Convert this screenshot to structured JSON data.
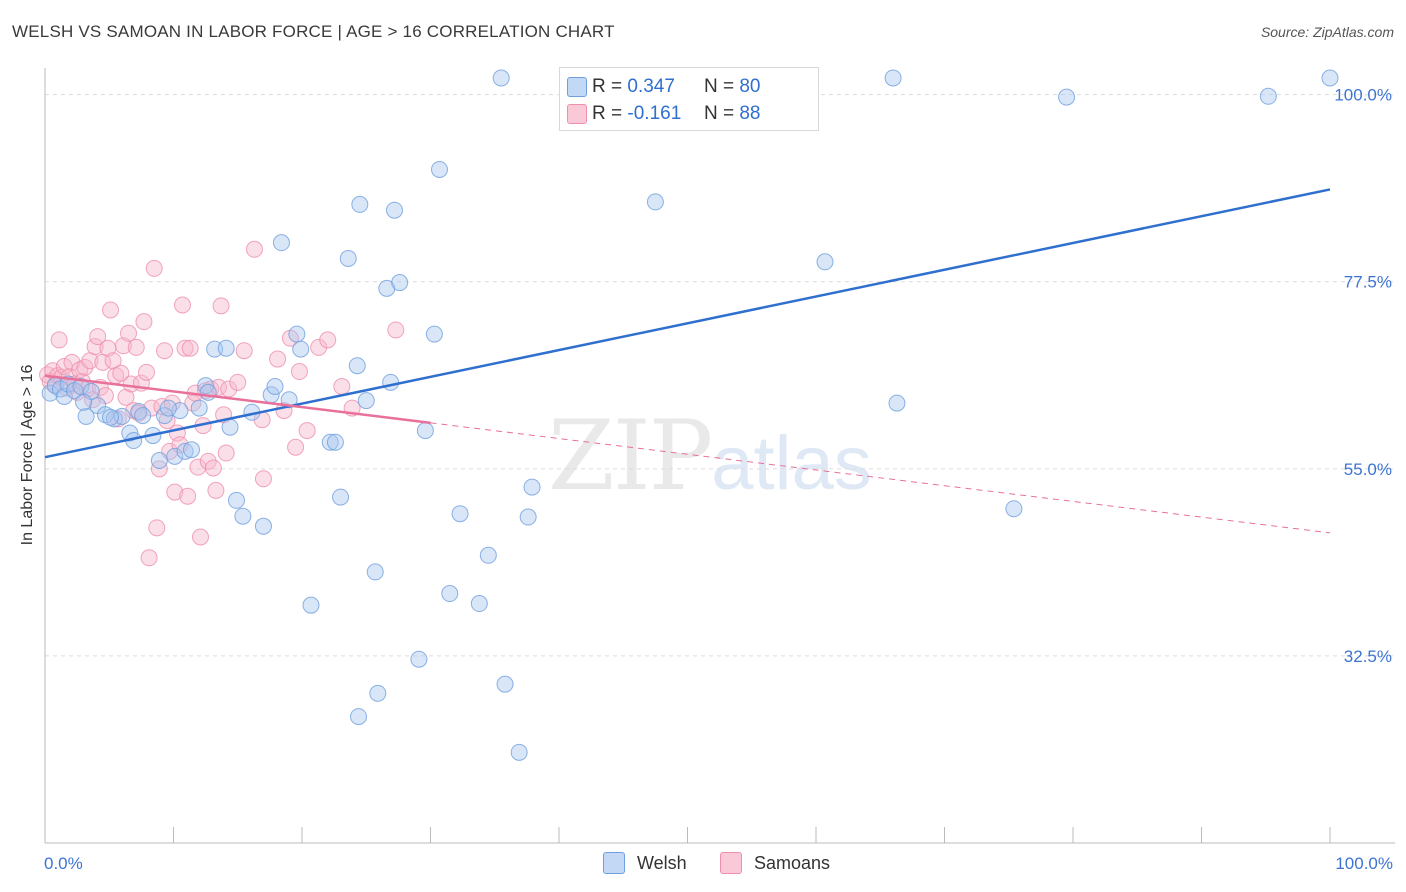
{
  "title": "WELSH VS SAMOAN IN LABOR FORCE | AGE > 16 CORRELATION CHART",
  "source": "Source: ZipAtlas.com",
  "watermark": {
    "zip": "ZIP",
    "atlas": "atlas"
  },
  "legend_top": {
    "welsh": {
      "r_label": "R =",
      "r_value": "0.347",
      "n_label": "N =",
      "n_value": "80"
    },
    "samoans": {
      "r_label": "R =",
      "r_value": "-0.161",
      "n_label": "N =",
      "n_value": "88"
    }
  },
  "legend_bottom": {
    "welsh": "Welsh",
    "samoans": "Samoans"
  },
  "colors": {
    "welsh_fill": "#a9c8f0",
    "welsh_stroke": "#6f9fde",
    "welsh_line": "#2f6fcf",
    "samoan_fill": "#f7b8cc",
    "samoan_stroke": "#ee8fac",
    "samoan_line": "#e8709a",
    "tick_label": "#3d74d2",
    "grid": "#dcdcdc"
  },
  "chart_data": {
    "type": "scatter",
    "title": "WELSH VS SAMOAN IN LABOR FORCE | AGE > 16 CORRELATION CHART",
    "xlabel": "",
    "ylabel": "In Labor Force | Age > 16",
    "xlim": [
      0,
      100
    ],
    "ylim": [
      10,
      102
    ],
    "x_tick_labels": [
      "0.0%",
      "100.0%"
    ],
    "y_ticks": [
      32.5,
      55.0,
      77.5,
      100.0
    ],
    "y_tick_labels": [
      "32.5%",
      "55.0%",
      "77.5%",
      "100.0%"
    ],
    "grid": true,
    "series": [
      {
        "name": "Welsh",
        "r": 0.347,
        "n": 80,
        "trend": {
          "x": [
            0,
            100
          ],
          "y": [
            56.4,
            88.6
          ],
          "dashed_from": null
        },
        "points": [
          [
            0.4,
            64.1
          ],
          [
            0.8,
            65.0
          ],
          [
            1.2,
            64.6
          ],
          [
            1.5,
            63.7
          ],
          [
            1.8,
            65.2
          ],
          [
            2.3,
            64.4
          ],
          [
            2.8,
            64.9
          ],
          [
            3.2,
            61.3
          ],
          [
            3.6,
            64.3
          ],
          [
            4.1,
            62.6
          ],
          [
            4.7,
            61.5
          ],
          [
            5.4,
            61.0
          ],
          [
            6.0,
            61.3
          ],
          [
            6.6,
            59.3
          ],
          [
            6.9,
            58.4
          ],
          [
            7.3,
            61.9
          ],
          [
            7.6,
            61.4
          ],
          [
            8.4,
            59.0
          ],
          [
            8.9,
            56.0
          ],
          [
            9.3,
            61.4
          ],
          [
            10.1,
            56.5
          ],
          [
            10.5,
            62.0
          ],
          [
            10.9,
            57.1
          ],
          [
            11.4,
            57.3
          ],
          [
            12.0,
            62.3
          ],
          [
            12.5,
            65.0
          ],
          [
            12.7,
            64.2
          ],
          [
            13.2,
            69.4
          ],
          [
            14.1,
            69.5
          ],
          [
            14.4,
            60.0
          ],
          [
            14.9,
            51.2
          ],
          [
            15.4,
            49.3
          ],
          [
            16.1,
            61.8
          ],
          [
            17.0,
            48.1
          ],
          [
            17.6,
            63.9
          ],
          [
            17.9,
            64.9
          ],
          [
            18.4,
            82.2
          ],
          [
            19.0,
            63.3
          ],
          [
            19.6,
            71.2
          ],
          [
            19.9,
            69.4
          ],
          [
            20.7,
            38.6
          ],
          [
            22.2,
            58.2
          ],
          [
            22.6,
            58.2
          ],
          [
            23.0,
            51.6
          ],
          [
            23.6,
            80.3
          ],
          [
            24.3,
            67.4
          ],
          [
            24.5,
            86.8
          ],
          [
            25.0,
            63.2
          ],
          [
            25.7,
            42.6
          ],
          [
            26.6,
            76.7
          ],
          [
            26.9,
            65.4
          ],
          [
            27.2,
            86.1
          ],
          [
            27.6,
            77.4
          ],
          [
            29.1,
            32.1
          ],
          [
            29.6,
            59.6
          ],
          [
            30.3,
            71.2
          ],
          [
            30.7,
            91.0
          ],
          [
            31.5,
            40.0
          ],
          [
            32.3,
            49.6
          ],
          [
            33.8,
            38.8
          ],
          [
            34.5,
            44.6
          ],
          [
            35.5,
            102.0
          ],
          [
            35.8,
            29.1
          ],
          [
            36.9,
            20.9
          ],
          [
            37.6,
            49.2
          ],
          [
            37.9,
            52.8
          ],
          [
            41.0,
            102.0
          ],
          [
            47.5,
            87.1
          ],
          [
            60.7,
            79.9
          ],
          [
            66.0,
            102.0
          ],
          [
            66.3,
            62.9
          ],
          [
            75.4,
            50.2
          ],
          [
            79.5,
            99.7
          ],
          [
            95.2,
            99.8
          ],
          [
            100.0,
            102.0
          ],
          [
            24.4,
            25.2
          ],
          [
            25.9,
            28.0
          ],
          [
            3.0,
            63.0
          ],
          [
            9.6,
            62.3
          ],
          [
            5.1,
            61.2
          ]
        ]
      },
      {
        "name": "Samoans",
        "r": -0.161,
        "n": 88,
        "trend": {
          "x": [
            0,
            100
          ],
          "y": [
            66.2,
            47.3
          ],
          "dashed_from": 30
        },
        "points": [
          [
            0.2,
            66.3
          ],
          [
            0.4,
            65.5
          ],
          [
            0.6,
            66.8
          ],
          [
            0.8,
            65.1
          ],
          [
            1.0,
            66.2
          ],
          [
            1.1,
            70.5
          ],
          [
            1.3,
            66.0
          ],
          [
            1.5,
            67.3
          ],
          [
            1.7,
            64.7
          ],
          [
            1.9,
            66.1
          ],
          [
            2.1,
            67.8
          ],
          [
            2.3,
            65.2
          ],
          [
            2.5,
            64.2
          ],
          [
            2.7,
            66.9
          ],
          [
            2.9,
            65.5
          ],
          [
            3.1,
            67.2
          ],
          [
            3.3,
            64.6
          ],
          [
            3.5,
            68.0
          ],
          [
            3.7,
            63.3
          ],
          [
            3.9,
            69.7
          ],
          [
            4.1,
            70.9
          ],
          [
            4.3,
            64.8
          ],
          [
            4.5,
            67.8
          ],
          [
            4.7,
            63.8
          ],
          [
            4.9,
            69.5
          ],
          [
            5.1,
            74.1
          ],
          [
            5.3,
            68.0
          ],
          [
            5.5,
            66.2
          ],
          [
            5.7,
            61.0
          ],
          [
            5.9,
            66.5
          ],
          [
            6.1,
            69.8
          ],
          [
            6.3,
            63.6
          ],
          [
            6.5,
            71.3
          ],
          [
            6.7,
            65.2
          ],
          [
            6.9,
            62.0
          ],
          [
            7.1,
            69.6
          ],
          [
            7.3,
            61.7
          ],
          [
            7.5,
            65.3
          ],
          [
            7.7,
            72.7
          ],
          [
            7.9,
            66.6
          ],
          [
            8.1,
            44.3
          ],
          [
            8.3,
            62.3
          ],
          [
            8.5,
            79.1
          ],
          [
            8.7,
            47.9
          ],
          [
            8.9,
            55.0
          ],
          [
            9.1,
            62.5
          ],
          [
            9.3,
            69.2
          ],
          [
            9.5,
            60.8
          ],
          [
            9.7,
            57.1
          ],
          [
            9.9,
            62.9
          ],
          [
            10.1,
            52.2
          ],
          [
            10.3,
            59.3
          ],
          [
            10.5,
            57.9
          ],
          [
            10.7,
            74.7
          ],
          [
            10.9,
            69.5
          ],
          [
            11.1,
            51.7
          ],
          [
            11.3,
            69.5
          ],
          [
            11.5,
            62.9
          ],
          [
            11.7,
            64.1
          ],
          [
            11.9,
            55.2
          ],
          [
            12.1,
            46.8
          ],
          [
            12.3,
            60.2
          ],
          [
            12.5,
            64.4
          ],
          [
            12.7,
            55.9
          ],
          [
            12.9,
            64.6
          ],
          [
            13.1,
            55.1
          ],
          [
            13.3,
            52.4
          ],
          [
            13.5,
            64.8
          ],
          [
            13.7,
            74.6
          ],
          [
            13.9,
            61.5
          ],
          [
            14.1,
            56.9
          ],
          [
            14.3,
            64.6
          ],
          [
            15.0,
            65.4
          ],
          [
            15.5,
            69.2
          ],
          [
            16.3,
            81.4
          ],
          [
            16.9,
            60.9
          ],
          [
            17.0,
            53.8
          ],
          [
            18.1,
            68.2
          ],
          [
            18.6,
            62.0
          ],
          [
            19.1,
            70.7
          ],
          [
            19.5,
            57.6
          ],
          [
            19.8,
            66.7
          ],
          [
            20.4,
            59.6
          ],
          [
            21.3,
            69.6
          ],
          [
            22.0,
            70.5
          ],
          [
            23.1,
            64.9
          ],
          [
            23.9,
            62.3
          ],
          [
            27.3,
            71.7
          ]
        ]
      }
    ]
  }
}
